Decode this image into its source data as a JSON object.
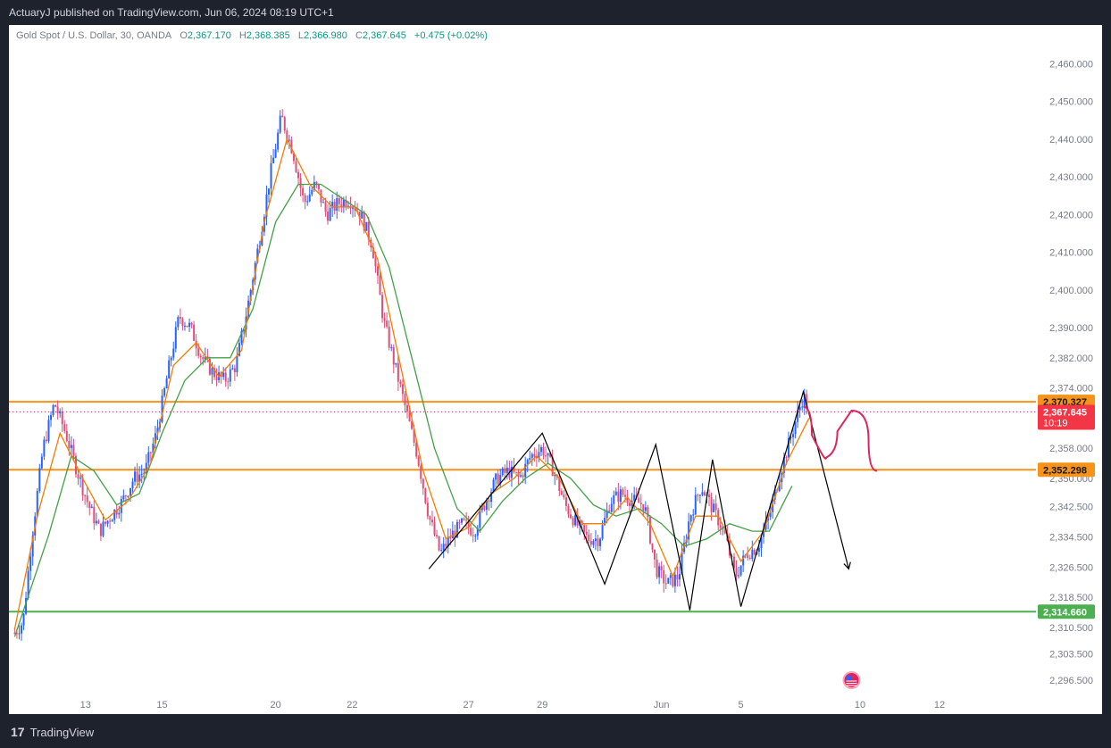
{
  "header": {
    "publisher_text": "ActuaryJ published on TradingView.com, Jun 06, 2024 08:19 UTC+1"
  },
  "legend": {
    "symbol": "Gold Spot / U.S. Dollar, 30, OANDA",
    "o_label": "O",
    "o_value": "2,367.170",
    "h_label": "H",
    "h_value": "2,368.385",
    "l_label": "L",
    "l_value": "2,366.980",
    "c_label": "C",
    "c_value": "2,367.645",
    "change": "+0.475 (+0.02%)"
  },
  "footer": {
    "brand": "TradingView"
  },
  "colors": {
    "up": "#2962ff",
    "down": "#e04e7a",
    "ema_fast": "#f57c00",
    "ema_slow": "#43a047",
    "level": "#f7931a",
    "support": "#4caf50",
    "projection": "#e0245e",
    "zigzag": "#000000"
  },
  "chart_data": {
    "type": "candlestick",
    "symbol": "Gold Spot / U.S. Dollar",
    "interval": "30",
    "exchange": "OANDA",
    "ylim": [
      2292.0,
      2466.0
    ],
    "y_ticks": [
      "2,460.000",
      "2,450.000",
      "2,440.000",
      "2,430.000",
      "2,420.000",
      "2,410.000",
      "2,400.000",
      "2,390.000",
      "2,382.000",
      "2,374.000",
      "2,358.000",
      "2,350.000",
      "2,342.500",
      "2,334.500",
      "2,326.500",
      "2,318.500",
      "2,310.500",
      "2,303.500",
      "2,296.500"
    ],
    "x_ticks": [
      "13",
      "15",
      "20",
      "22",
      "27",
      "29",
      "Jun",
      "5",
      "10",
      "12"
    ],
    "price_path": [
      {
        "t": 0,
        "v": 2309
      },
      {
        "t": 1.5,
        "v": 2312
      },
      {
        "t": 3,
        "v": 2334
      },
      {
        "t": 5,
        "v": 2358
      },
      {
        "t": 7,
        "v": 2370
      },
      {
        "t": 9,
        "v": 2362
      },
      {
        "t": 11,
        "v": 2352
      },
      {
        "t": 13,
        "v": 2343
      },
      {
        "t": 15,
        "v": 2336
      },
      {
        "t": 17,
        "v": 2340
      },
      {
        "t": 19,
        "v": 2344
      },
      {
        "t": 21,
        "v": 2350
      },
      {
        "t": 23,
        "v": 2352
      },
      {
        "t": 25,
        "v": 2362
      },
      {
        "t": 27,
        "v": 2378
      },
      {
        "t": 29,
        "v": 2393
      },
      {
        "t": 31,
        "v": 2390
      },
      {
        "t": 33,
        "v": 2382
      },
      {
        "t": 35,
        "v": 2378
      },
      {
        "t": 37,
        "v": 2376
      },
      {
        "t": 39,
        "v": 2380
      },
      {
        "t": 41,
        "v": 2395
      },
      {
        "t": 43,
        "v": 2412
      },
      {
        "t": 45,
        "v": 2430
      },
      {
        "t": 47,
        "v": 2446
      },
      {
        "t": 49,
        "v": 2437
      },
      {
        "t": 51,
        "v": 2423
      },
      {
        "t": 53,
        "v": 2428
      },
      {
        "t": 55,
        "v": 2420
      },
      {
        "t": 57,
        "v": 2423
      },
      {
        "t": 59,
        "v": 2424
      },
      {
        "t": 61,
        "v": 2420
      },
      {
        "t": 63,
        "v": 2412
      },
      {
        "t": 65,
        "v": 2392
      },
      {
        "t": 67,
        "v": 2380
      },
      {
        "t": 69,
        "v": 2368
      },
      {
        "t": 71,
        "v": 2356
      },
      {
        "t": 73,
        "v": 2340
      },
      {
        "t": 75,
        "v": 2330
      },
      {
        "t": 77,
        "v": 2335
      },
      {
        "t": 79,
        "v": 2338
      },
      {
        "t": 81,
        "v": 2336
      },
      {
        "t": 83,
        "v": 2344
      },
      {
        "t": 85,
        "v": 2350
      },
      {
        "t": 87,
        "v": 2352
      },
      {
        "t": 89,
        "v": 2350
      },
      {
        "t": 91,
        "v": 2356
      },
      {
        "t": 93,
        "v": 2358
      },
      {
        "t": 95,
        "v": 2352
      },
      {
        "t": 97,
        "v": 2343
      },
      {
        "t": 99,
        "v": 2338
      },
      {
        "t": 101,
        "v": 2334
      },
      {
        "t": 103,
        "v": 2334
      },
      {
        "t": 105,
        "v": 2344
      },
      {
        "t": 107,
        "v": 2346
      },
      {
        "t": 109,
        "v": 2344
      },
      {
        "t": 111,
        "v": 2343
      },
      {
        "t": 113,
        "v": 2326
      },
      {
        "t": 115,
        "v": 2322
      },
      {
        "t": 117,
        "v": 2324
      },
      {
        "t": 119,
        "v": 2340
      },
      {
        "t": 121,
        "v": 2348
      },
      {
        "t": 123,
        "v": 2342
      },
      {
        "t": 125,
        "v": 2336
      },
      {
        "t": 127,
        "v": 2324
      },
      {
        "t": 129,
        "v": 2330
      },
      {
        "t": 131,
        "v": 2332
      },
      {
        "t": 133,
        "v": 2340
      },
      {
        "t": 135,
        "v": 2352
      },
      {
        "t": 137,
        "v": 2362
      },
      {
        "t": 139,
        "v": 2372
      },
      {
        "t": 140,
        "v": 2368
      }
    ],
    "ema_fast": [
      {
        "t": 0,
        "v": 2310
      },
      {
        "t": 4,
        "v": 2340
      },
      {
        "t": 8,
        "v": 2362
      },
      {
        "t": 12,
        "v": 2350
      },
      {
        "t": 16,
        "v": 2339
      },
      {
        "t": 20,
        "v": 2344
      },
      {
        "t": 24,
        "v": 2354
      },
      {
        "t": 28,
        "v": 2380
      },
      {
        "t": 32,
        "v": 2386
      },
      {
        "t": 36,
        "v": 2377
      },
      {
        "t": 40,
        "v": 2384
      },
      {
        "t": 44,
        "v": 2418
      },
      {
        "t": 48,
        "v": 2440
      },
      {
        "t": 52,
        "v": 2428
      },
      {
        "t": 56,
        "v": 2422
      },
      {
        "t": 60,
        "v": 2422
      },
      {
        "t": 64,
        "v": 2408
      },
      {
        "t": 68,
        "v": 2380
      },
      {
        "t": 72,
        "v": 2352
      },
      {
        "t": 76,
        "v": 2334
      },
      {
        "t": 80,
        "v": 2337
      },
      {
        "t": 84,
        "v": 2346
      },
      {
        "t": 88,
        "v": 2350
      },
      {
        "t": 92,
        "v": 2356
      },
      {
        "t": 96,
        "v": 2350
      },
      {
        "t": 100,
        "v": 2338
      },
      {
        "t": 104,
        "v": 2338
      },
      {
        "t": 108,
        "v": 2345
      },
      {
        "t": 112,
        "v": 2338
      },
      {
        "t": 116,
        "v": 2324
      },
      {
        "t": 120,
        "v": 2340
      },
      {
        "t": 124,
        "v": 2340
      },
      {
        "t": 128,
        "v": 2328
      },
      {
        "t": 132,
        "v": 2336
      },
      {
        "t": 136,
        "v": 2354
      },
      {
        "t": 140,
        "v": 2366
      }
    ],
    "ema_slow": [
      {
        "t": 0,
        "v": 2308
      },
      {
        "t": 6,
        "v": 2335
      },
      {
        "t": 10,
        "v": 2356
      },
      {
        "t": 14,
        "v": 2352
      },
      {
        "t": 18,
        "v": 2343
      },
      {
        "t": 22,
        "v": 2346
      },
      {
        "t": 26,
        "v": 2362
      },
      {
        "t": 30,
        "v": 2376
      },
      {
        "t": 34,
        "v": 2382
      },
      {
        "t": 38,
        "v": 2382
      },
      {
        "t": 42,
        "v": 2395
      },
      {
        "t": 46,
        "v": 2418
      },
      {
        "t": 50,
        "v": 2428
      },
      {
        "t": 54,
        "v": 2428
      },
      {
        "t": 58,
        "v": 2424
      },
      {
        "t": 62,
        "v": 2420
      },
      {
        "t": 66,
        "v": 2406
      },
      {
        "t": 70,
        "v": 2382
      },
      {
        "t": 74,
        "v": 2358
      },
      {
        "t": 78,
        "v": 2342
      },
      {
        "t": 82,
        "v": 2336
      },
      {
        "t": 86,
        "v": 2344
      },
      {
        "t": 90,
        "v": 2350
      },
      {
        "t": 94,
        "v": 2354
      },
      {
        "t": 98,
        "v": 2350
      },
      {
        "t": 102,
        "v": 2343
      },
      {
        "t": 106,
        "v": 2340
      },
      {
        "t": 110,
        "v": 2342
      },
      {
        "t": 114,
        "v": 2338
      },
      {
        "t": 118,
        "v": 2332
      },
      {
        "t": 122,
        "v": 2334
      },
      {
        "t": 126,
        "v": 2338
      },
      {
        "t": 130,
        "v": 2336
      },
      {
        "t": 133,
        "v": 2336
      },
      {
        "t": 137,
        "v": 2348
      }
    ],
    "zigzag": [
      {
        "t": 73,
        "v": 2326
      },
      {
        "t": 93,
        "v": 2362
      },
      {
        "t": 104,
        "v": 2322
      },
      {
        "t": 113,
        "v": 2359
      },
      {
        "t": 119,
        "v": 2315
      },
      {
        "t": 123,
        "v": 2355
      },
      {
        "t": 128,
        "v": 2316
      },
      {
        "t": 139,
        "v": 2373
      },
      {
        "t": 147,
        "v": 2326
      }
    ],
    "projection_curve": [
      {
        "t": 139,
        "v": 2369
      },
      {
        "t": 142,
        "v": 2354
      },
      {
        "t": 144,
        "v": 2357
      },
      {
        "t": 146,
        "v": 2368
      },
      {
        "t": 149,
        "v": 2368
      },
      {
        "t": 152,
        "v": 2352
      }
    ],
    "levels": [
      {
        "label": "2,370.327",
        "value": 2370.327,
        "color": "#f7931a"
      },
      {
        "label": "2,352.298",
        "value": 2352.298,
        "color": "#f7931a"
      },
      {
        "label": "2,314.660",
        "value": 2314.66,
        "color": "#4caf50"
      }
    ],
    "last_price": {
      "label": "2,367.645",
      "value": 2367.645,
      "countdown": "10:19"
    },
    "tick_positions": [
      {
        "label": "13",
        "t": 12.5
      },
      {
        "label": "15",
        "t": 26
      },
      {
        "label": "20",
        "t": 46
      },
      {
        "label": "22",
        "t": 59.5
      },
      {
        "label": "27",
        "t": 80
      },
      {
        "label": "29",
        "t": 93
      },
      {
        "label": "Jun",
        "t": 114
      },
      {
        "label": "5",
        "t": 128
      },
      {
        "label": "10",
        "t": 149
      },
      {
        "label": "12",
        "t": 163
      }
    ],
    "t_range": [
      -1,
      180
    ]
  }
}
